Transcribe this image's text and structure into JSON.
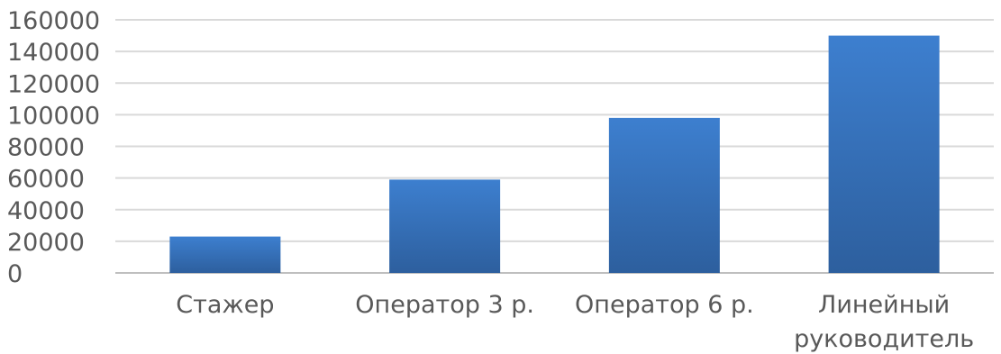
{
  "chart_data": {
    "type": "bar",
    "title": "",
    "xlabel": "",
    "ylabel": "",
    "categories": [
      [
        "Стажер"
      ],
      [
        "Оператор 3 р."
      ],
      [
        "Оператор 6 р."
      ],
      [
        "Линейный",
        "руководитель"
      ]
    ],
    "values": [
      23000,
      59000,
      98000,
      150000
    ],
    "ylim": [
      0,
      160000
    ],
    "yticks": [
      "0",
      "20000",
      "40000",
      "60000",
      "80000",
      "100000",
      "120000",
      "140000",
      "160000"
    ],
    "grid": true,
    "legend": "none",
    "colors": {
      "bar_top": "#3d7fcf",
      "bar_bottom": "#2d5f9e",
      "grid": "#d9d9d9",
      "axis": "#bfbfbf",
      "text": "#595959"
    }
  }
}
